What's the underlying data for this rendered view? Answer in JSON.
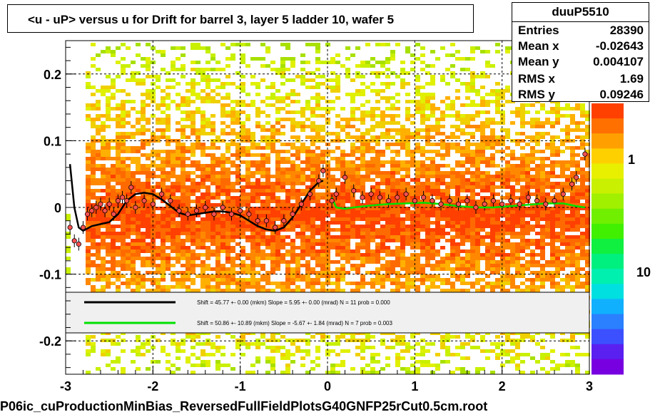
{
  "title": "<u - uP>       versus   u for Drift for barrel 3, layer 5 ladder 10, wafer 5",
  "stats": {
    "name": "duuP5510",
    "rows": [
      {
        "label": "Entries",
        "value": "28390"
      },
      {
        "label": "Mean x",
        "value": "-0.02643"
      },
      {
        "label": "Mean y",
        "value": "0.004107"
      },
      {
        "label": "RMS x",
        "value": "1.69"
      },
      {
        "label": "RMS y",
        "value": "0.09246"
      }
    ]
  },
  "footer": "P06ic_cuProductionMinBias_ReversedFullFieldPlotsG40GNFP25rCut0.5cm.root",
  "colors": {
    "fit_black": "#000000",
    "fit_green": "#00e000",
    "marker": "#ff5050",
    "legend_bg": "#f0f0f0"
  },
  "chart_data": {
    "type": "scatter",
    "xlim": [
      -3,
      3
    ],
    "ylim": [
      -0.25,
      0.25
    ],
    "x_ticks": [
      -3,
      -2,
      -1,
      0,
      1,
      2,
      3
    ],
    "y_ticks": [
      -0.2,
      -0.1,
      0,
      0.1,
      0.2
    ],
    "x_tick_labels": [
      "-3",
      "-2",
      "-1",
      "0",
      "1",
      "2",
      "3"
    ],
    "y_tick_labels": [
      "-0.2",
      "-0.1",
      "0",
      "0.1",
      "0.2"
    ],
    "grid": true,
    "colorbar_labels": [
      "1",
      "10"
    ],
    "legend": [
      {
        "text": "Shift =    45.77 +- 0.00 (mkm) Slope =     5.95 +- 0.00 (mrad)  N = 11 prob = 0.000",
        "color": "#000000"
      },
      {
        "text": "Shift =    50.86 +- 10.89 (mkm) Slope =    -5.67 +- 1.84 (mrad)  N = 7 prob = 0.003",
        "color": "#00e000"
      }
    ],
    "profile_points": [
      {
        "x": -2.95,
        "y": -0.03
      },
      {
        "x": -2.9,
        "y": -0.05
      },
      {
        "x": -2.85,
        "y": -0.055
      },
      {
        "x": -2.8,
        "y": -0.03
      },
      {
        "x": -2.75,
        "y": -0.01
      },
      {
        "x": -2.7,
        "y": -0.005
      },
      {
        "x": -2.65,
        "y": 0.0
      },
      {
        "x": -2.6,
        "y": 0.005
      },
      {
        "x": -2.55,
        "y": -0.005
      },
      {
        "x": -2.5,
        "y": 0.005
      },
      {
        "x": -2.45,
        "y": -0.01
      },
      {
        "x": -2.4,
        "y": 0.01
      },
      {
        "x": -2.35,
        "y": 0.015
      },
      {
        "x": -2.3,
        "y": 0.01
      },
      {
        "x": -2.25,
        "y": 0.03
      },
      {
        "x": -2.2,
        "y": 0.0
      },
      {
        "x": -2.1,
        "y": 0.01
      },
      {
        "x": -2.0,
        "y": 0.005
      },
      {
        "x": -1.9,
        "y": 0.02
      },
      {
        "x": -1.8,
        "y": 0.01
      },
      {
        "x": -1.7,
        "y": -0.005
      },
      {
        "x": -1.6,
        "y": -0.01
      },
      {
        "x": -1.5,
        "y": -0.005
      },
      {
        "x": -1.4,
        "y": 0.0
      },
      {
        "x": -1.3,
        "y": -0.01
      },
      {
        "x": -1.2,
        "y": 0.0
      },
      {
        "x": -1.1,
        "y": -0.01
      },
      {
        "x": -1.0,
        "y": -0.005
      },
      {
        "x": -0.9,
        "y": -0.01
      },
      {
        "x": -0.8,
        "y": -0.02
      },
      {
        "x": -0.7,
        "y": -0.02
      },
      {
        "x": -0.6,
        "y": -0.03
      },
      {
        "x": -0.5,
        "y": -0.02
      },
      {
        "x": -0.4,
        "y": -0.01
      },
      {
        "x": -0.3,
        "y": 0.005
      },
      {
        "x": -0.2,
        "y": 0.02
      },
      {
        "x": -0.1,
        "y": 0.04
      },
      {
        "x": -0.05,
        "y": 0.055
      },
      {
        "x": 0.05,
        "y": 0.01
      },
      {
        "x": 0.1,
        "y": 0.02
      },
      {
        "x": 0.2,
        "y": 0.045
      },
      {
        "x": 0.3,
        "y": 0.025
      },
      {
        "x": 0.4,
        "y": 0.015
      },
      {
        "x": 0.5,
        "y": 0.02
      },
      {
        "x": 0.6,
        "y": 0.015
      },
      {
        "x": 0.7,
        "y": 0.01
      },
      {
        "x": 0.8,
        "y": 0.015
      },
      {
        "x": 0.9,
        "y": 0.02
      },
      {
        "x": 1.0,
        "y": 0.01
      },
      {
        "x": 1.1,
        "y": 0.015
      },
      {
        "x": 1.2,
        "y": 0.01
      },
      {
        "x": 1.3,
        "y": 0.005
      },
      {
        "x": 1.4,
        "y": 0.01
      },
      {
        "x": 1.5,
        "y": 0.005
      },
      {
        "x": 1.6,
        "y": 0.01
      },
      {
        "x": 1.7,
        "y": 0.0
      },
      {
        "x": 1.8,
        "y": 0.005
      },
      {
        "x": 1.9,
        "y": 0.01
      },
      {
        "x": 2.0,
        "y": 0.005
      },
      {
        "x": 2.1,
        "y": 0.01
      },
      {
        "x": 2.2,
        "y": 0.005
      },
      {
        "x": 2.3,
        "y": 0.015
      },
      {
        "x": 2.4,
        "y": 0.01
      },
      {
        "x": 2.5,
        "y": 0.005
      },
      {
        "x": 2.6,
        "y": 0.01
      },
      {
        "x": 2.7,
        "y": 0.02
      },
      {
        "x": 2.8,
        "y": 0.035
      },
      {
        "x": 2.85,
        "y": 0.045
      },
      {
        "x": 2.95,
        "y": 0.08
      }
    ],
    "fit_black": [
      {
        "x": -2.95,
        "y": 0.065
      },
      {
        "x": -2.9,
        "y": 0.0
      },
      {
        "x": -2.85,
        "y": -0.03
      },
      {
        "x": -2.8,
        "y": -0.035
      },
      {
        "x": -2.7,
        "y": -0.028
      },
      {
        "x": -2.6,
        "y": -0.025
      },
      {
        "x": -2.5,
        "y": -0.022
      },
      {
        "x": -2.4,
        "y": -0.01
      },
      {
        "x": -2.3,
        "y": 0.01
      },
      {
        "x": -2.2,
        "y": 0.02
      },
      {
        "x": -2.1,
        "y": 0.022
      },
      {
        "x": -2.0,
        "y": 0.02
      },
      {
        "x": -1.9,
        "y": 0.012
      },
      {
        "x": -1.8,
        "y": 0.002
      },
      {
        "x": -1.7,
        "y": -0.008
      },
      {
        "x": -1.6,
        "y": -0.012
      },
      {
        "x": -1.5,
        "y": -0.01
      },
      {
        "x": -1.4,
        "y": -0.008
      },
      {
        "x": -1.3,
        "y": -0.006
      },
      {
        "x": -1.2,
        "y": -0.006
      },
      {
        "x": -1.1,
        "y": -0.008
      },
      {
        "x": -1.0,
        "y": -0.012
      },
      {
        "x": -0.9,
        "y": -0.02
      },
      {
        "x": -0.8,
        "y": -0.028
      },
      {
        "x": -0.7,
        "y": -0.033
      },
      {
        "x": -0.6,
        "y": -0.035
      },
      {
        "x": -0.5,
        "y": -0.03
      },
      {
        "x": -0.4,
        "y": -0.015
      },
      {
        "x": -0.3,
        "y": 0.005
      },
      {
        "x": -0.2,
        "y": 0.025
      },
      {
        "x": -0.1,
        "y": 0.038
      },
      {
        "x": -0.05,
        "y": 0.04
      }
    ],
    "fit_green": [
      {
        "x": 0.05,
        "y": 0.015
      },
      {
        "x": 0.1,
        "y": 0.0
      },
      {
        "x": 0.2,
        "y": -0.002
      },
      {
        "x": 0.3,
        "y": 0.0
      },
      {
        "x": 0.5,
        "y": 0.003
      },
      {
        "x": 0.7,
        "y": 0.005
      },
      {
        "x": 0.9,
        "y": 0.006
      },
      {
        "x": 1.1,
        "y": 0.007
      },
      {
        "x": 1.3,
        "y": 0.005
      },
      {
        "x": 1.5,
        "y": 0.002
      },
      {
        "x": 1.7,
        "y": 0.0
      },
      {
        "x": 1.9,
        "y": 0.0
      },
      {
        "x": 2.1,
        "y": 0.002
      },
      {
        "x": 2.3,
        "y": 0.004
      },
      {
        "x": 2.5,
        "y": 0.006
      },
      {
        "x": 2.7,
        "y": 0.006
      },
      {
        "x": 2.85,
        "y": 0.002
      },
      {
        "x": 2.95,
        "y": 0.0
      }
    ]
  }
}
